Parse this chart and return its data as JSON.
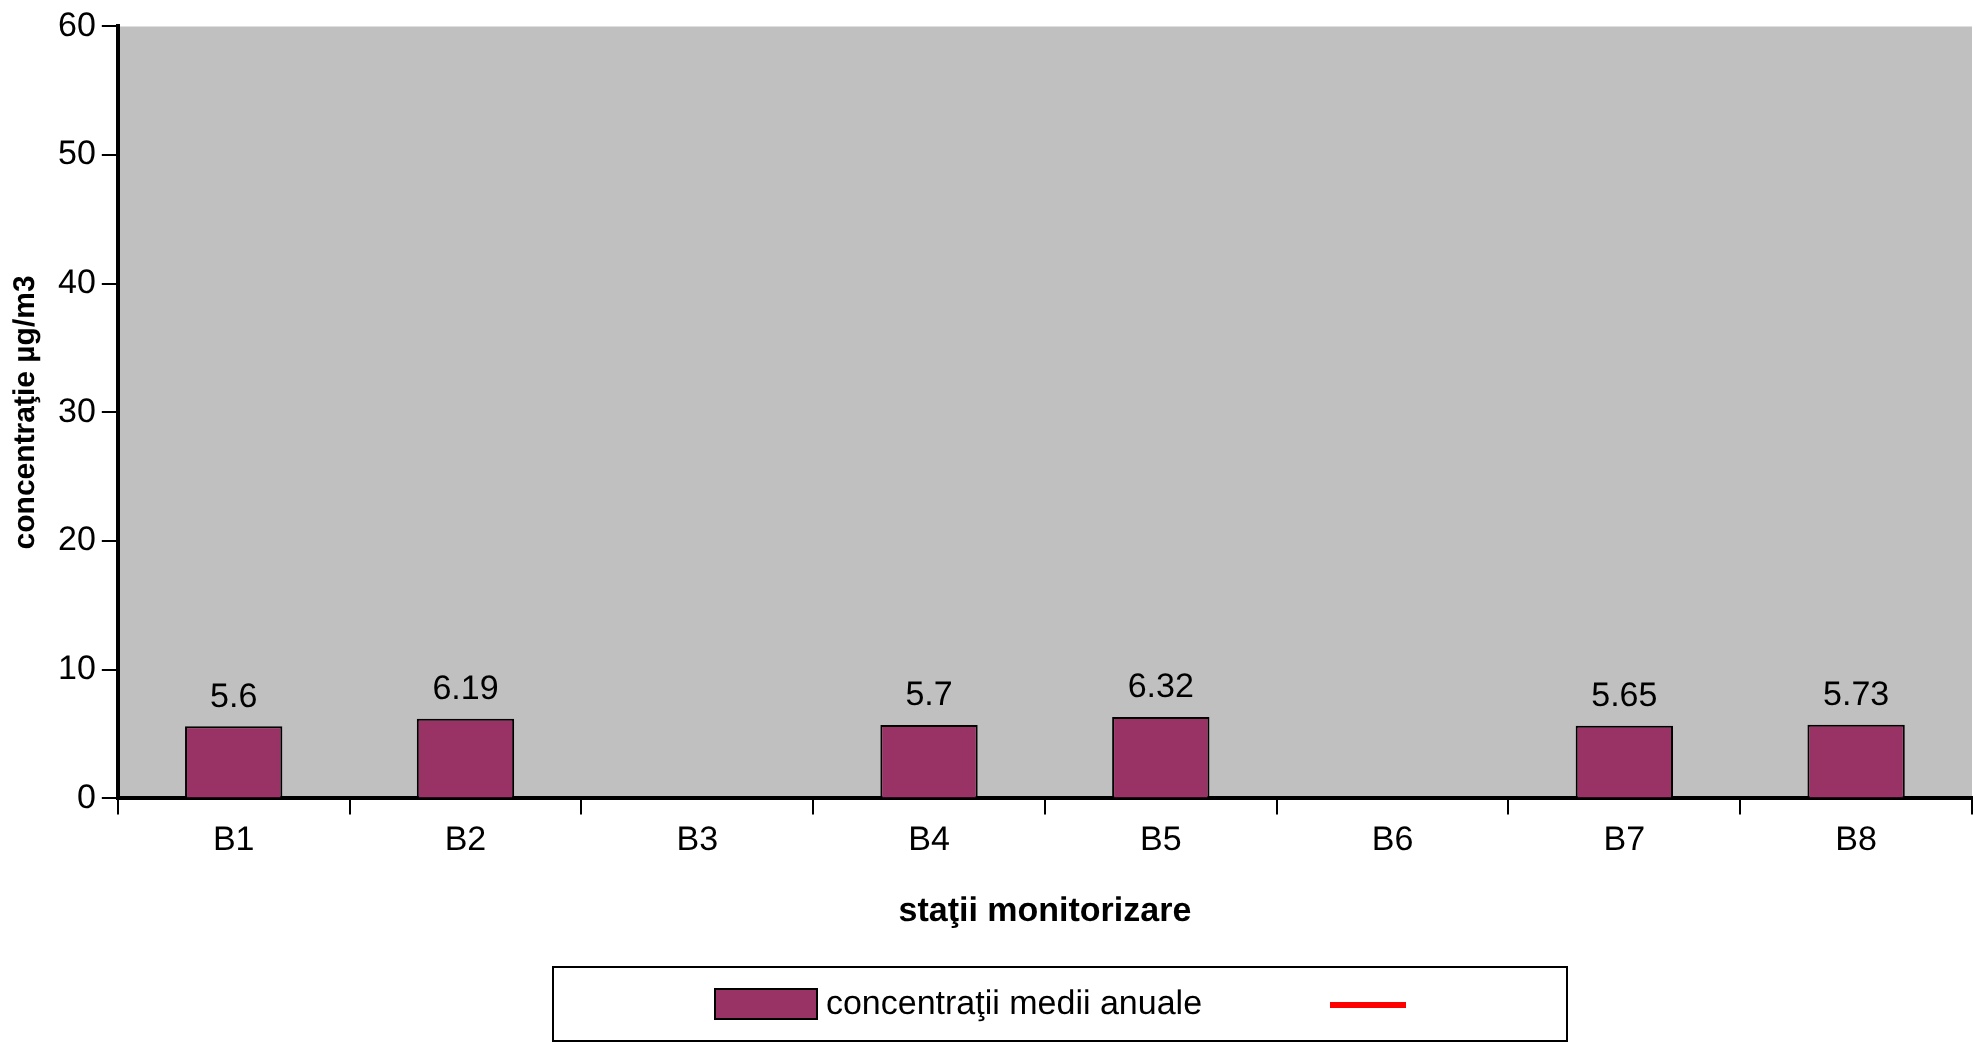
{
  "chart_data": {
    "type": "bar",
    "xlabel": "staţii monitorizare",
    "ylabel": "concentraţie µg/m3",
    "categories": [
      "B1",
      "B2",
      "B3",
      "B4",
      "B5",
      "B6",
      "B7",
      "B8"
    ],
    "series": [
      {
        "name": "concentraţii medii anuale",
        "color": "#993366",
        "values": [
          5.6,
          6.19,
          null,
          5.7,
          6.32,
          null,
          5.65,
          5.73
        ]
      },
      {
        "type": "line",
        "color": "#ff0000",
        "values": [
          null,
          null,
          null,
          null,
          null,
          null,
          null,
          null
        ]
      }
    ],
    "ylim": [
      0,
      60
    ],
    "yticks": [
      0,
      10,
      20,
      30,
      40,
      50,
      60
    ],
    "data_labels": true,
    "grid": false,
    "legend": "bottom"
  }
}
